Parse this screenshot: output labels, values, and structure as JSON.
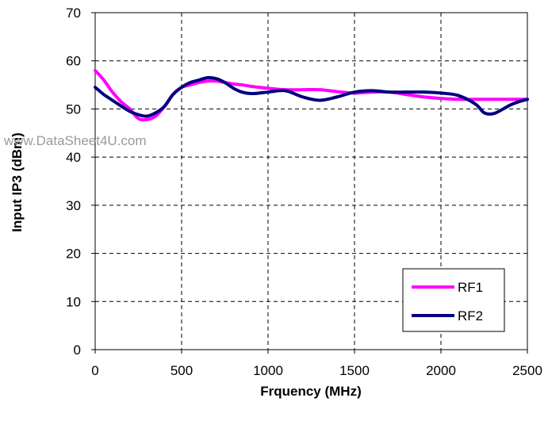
{
  "watermark": "www.DataSheet4U.com",
  "chart_data": {
    "type": "line",
    "title": "",
    "xlabel": "Frquency (MHz)",
    "ylabel": "Input IP3 (dBm)",
    "xlim": [
      0,
      2500
    ],
    "ylim": [
      0,
      70
    ],
    "xticks": [
      0,
      500,
      1000,
      1500,
      2000,
      2500
    ],
    "yticks": [
      0,
      10,
      20,
      30,
      40,
      50,
      60,
      70
    ],
    "grid": true,
    "grid_style": "dashed",
    "legend_position": "bottom-right",
    "series": [
      {
        "name": "RF1",
        "color": "#ff00ff",
        "x": [
          0,
          50,
          100,
          150,
          200,
          250,
          300,
          350,
          400,
          450,
          500,
          550,
          600,
          650,
          700,
          750,
          800,
          850,
          900,
          950,
          1000,
          1100,
          1200,
          1300,
          1400,
          1500,
          1600,
          1700,
          1800,
          1900,
          2000,
          2100,
          2200,
          2300,
          2400,
          2500
        ],
        "values": [
          58,
          56,
          53.5,
          51.5,
          50,
          48,
          47.8,
          48.5,
          50.5,
          53,
          54.5,
          55,
          55.5,
          55.8,
          55.8,
          55.5,
          55.2,
          55,
          54.7,
          54.5,
          54.3,
          54,
          54,
          54,
          53.6,
          53.3,
          53.5,
          53.5,
          53,
          52.5,
          52.2,
          52,
          52,
          52,
          52,
          52
        ]
      },
      {
        "name": "RF2",
        "color": "#000080",
        "x": [
          0,
          50,
          100,
          150,
          200,
          250,
          300,
          350,
          400,
          450,
          500,
          550,
          600,
          650,
          700,
          750,
          800,
          850,
          900,
          950,
          1000,
          1100,
          1200,
          1300,
          1400,
          1500,
          1600,
          1700,
          1800,
          1900,
          2000,
          2100,
          2200,
          2250,
          2300,
          2350,
          2400,
          2450,
          2500
        ],
        "values": [
          54.5,
          53,
          51.8,
          50.6,
          49.5,
          48.8,
          48.5,
          49.2,
          50.5,
          53,
          54.5,
          55.5,
          56,
          56.5,
          56.3,
          55.5,
          54.3,
          53.5,
          53.2,
          53.3,
          53.5,
          53.8,
          52.5,
          51.8,
          52.5,
          53.5,
          53.8,
          53.5,
          53.5,
          53.5,
          53.3,
          52.8,
          51,
          49.2,
          49,
          49.8,
          50.8,
          51.5,
          52
        ]
      }
    ]
  }
}
